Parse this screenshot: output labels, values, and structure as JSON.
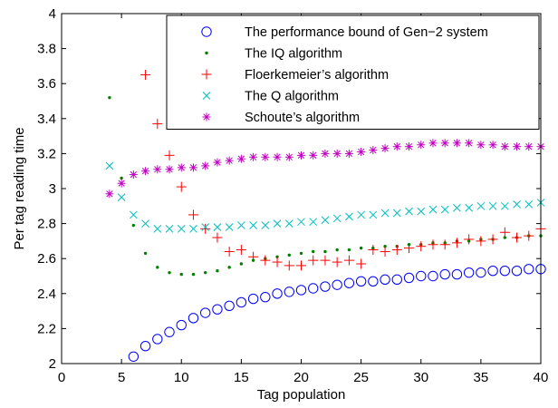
{
  "chart_data": {
    "type": "scatter",
    "xlabel": "Tag population",
    "ylabel": "Per tag reading time",
    "xlim": [
      0,
      40
    ],
    "ylim": [
      2,
      4
    ],
    "xticks": [
      0,
      5,
      10,
      15,
      20,
      25,
      30,
      35,
      40
    ],
    "yticks": [
      2,
      2.2,
      2.4,
      2.6,
      2.8,
      3,
      3.2,
      3.4,
      3.6,
      3.8,
      4
    ],
    "ytick_labels": [
      "2",
      "2.2",
      "2.4",
      "2.6",
      "2.8",
      "3",
      "3.2",
      "3.4",
      "3.6",
      "3.8",
      "4"
    ],
    "grid": false,
    "legend_position": "top-right",
    "series": [
      {
        "name": "The performance bound of Gen−2 system",
        "marker": "circle",
        "color": "#0000ff",
        "x": [
          6,
          7,
          8,
          9,
          10,
          11,
          12,
          13,
          14,
          15,
          16,
          17,
          18,
          19,
          20,
          21,
          22,
          23,
          24,
          25,
          26,
          27,
          28,
          29,
          30,
          31,
          32,
          33,
          34,
          35,
          36,
          37,
          38,
          39,
          40
        ],
        "y": [
          2.04,
          2.1,
          2.14,
          2.18,
          2.22,
          2.26,
          2.29,
          2.31,
          2.33,
          2.35,
          2.37,
          2.38,
          2.4,
          2.41,
          2.42,
          2.43,
          2.44,
          2.45,
          2.46,
          2.47,
          2.47,
          2.48,
          2.48,
          2.49,
          2.5,
          2.5,
          2.51,
          2.51,
          2.52,
          2.52,
          2.53,
          2.53,
          2.53,
          2.54,
          2.54
        ]
      },
      {
        "name": "The IQ algorithm",
        "marker": "dot",
        "color": "#008000",
        "x": [
          4,
          5,
          6,
          7,
          8,
          9,
          10,
          11,
          12,
          13,
          14,
          15,
          16,
          17,
          18,
          19,
          20,
          21,
          22,
          23,
          24,
          25,
          26,
          27,
          28,
          29,
          30,
          31,
          32,
          33,
          34,
          35,
          36,
          37,
          38,
          39,
          40
        ],
        "y": [
          3.52,
          3.06,
          2.79,
          2.63,
          2.55,
          2.52,
          2.51,
          2.51,
          2.52,
          2.53,
          2.55,
          2.57,
          2.59,
          2.6,
          2.61,
          2.62,
          2.63,
          2.64,
          2.64,
          2.65,
          2.65,
          2.66,
          2.66,
          2.67,
          2.67,
          2.68,
          2.68,
          2.69,
          2.69,
          2.7,
          2.7,
          2.71,
          2.71,
          2.72,
          2.72,
          2.73,
          2.73
        ]
      },
      {
        "name": "Floerkemeier’s algorithm",
        "marker": "plus",
        "color": "#ff0000",
        "x": [
          7,
          8,
          9,
          10,
          11,
          12,
          13,
          14,
          15,
          16,
          17,
          18,
          19,
          20,
          21,
          22,
          23,
          24,
          25,
          26,
          27,
          28,
          29,
          30,
          31,
          32,
          33,
          34,
          35,
          36,
          37,
          38,
          39,
          40
        ],
        "y": [
          3.65,
          3.37,
          3.19,
          3.01,
          2.85,
          2.77,
          2.72,
          2.64,
          2.65,
          2.61,
          2.59,
          2.58,
          2.56,
          2.56,
          2.59,
          2.59,
          2.58,
          2.59,
          2.57,
          2.65,
          2.64,
          2.65,
          2.66,
          2.67,
          2.68,
          2.68,
          2.69,
          2.71,
          2.7,
          2.71,
          2.75,
          2.72,
          2.73,
          2.77
        ]
      },
      {
        "name": "The Q algorithm",
        "marker": "x",
        "color": "#00c0c0",
        "x": [
          4,
          5,
          6,
          7,
          8,
          9,
          10,
          11,
          12,
          13,
          14,
          15,
          16,
          17,
          18,
          19,
          20,
          21,
          22,
          23,
          24,
          25,
          26,
          27,
          28,
          29,
          30,
          31,
          32,
          33,
          34,
          35,
          36,
          37,
          38,
          39,
          40
        ],
        "y": [
          3.13,
          2.95,
          2.85,
          2.8,
          2.77,
          2.77,
          2.77,
          2.77,
          2.78,
          2.78,
          2.78,
          2.79,
          2.79,
          2.79,
          2.8,
          2.8,
          2.81,
          2.81,
          2.82,
          2.83,
          2.84,
          2.85,
          2.85,
          2.86,
          2.86,
          2.87,
          2.87,
          2.88,
          2.88,
          2.89,
          2.89,
          2.9,
          2.9,
          2.9,
          2.91,
          2.91,
          2.92
        ]
      },
      {
        "name": "Schoute’s algorithm",
        "marker": "asterisk",
        "color": "#c000c0",
        "x": [
          4,
          5,
          6,
          7,
          8,
          9,
          10,
          11,
          12,
          13,
          14,
          15,
          16,
          17,
          18,
          19,
          20,
          21,
          22,
          23,
          24,
          25,
          26,
          27,
          28,
          29,
          30,
          31,
          32,
          33,
          34,
          35,
          36,
          37,
          38,
          39,
          40
        ],
        "y": [
          2.97,
          3.03,
          3.08,
          3.1,
          3.11,
          3.11,
          3.12,
          3.12,
          3.13,
          3.15,
          3.16,
          3.17,
          3.18,
          3.18,
          3.18,
          3.18,
          3.19,
          3.19,
          3.2,
          3.2,
          3.2,
          3.21,
          3.22,
          3.23,
          3.24,
          3.24,
          3.25,
          3.26,
          3.26,
          3.26,
          3.26,
          3.25,
          3.25,
          3.24,
          3.24,
          3.24,
          3.24
        ]
      }
    ]
  }
}
